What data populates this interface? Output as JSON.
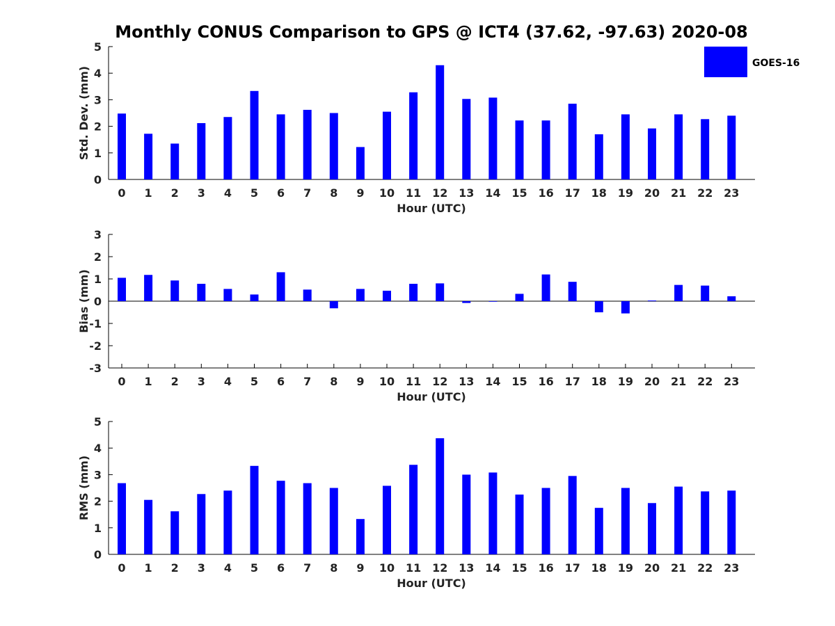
{
  "title": "Monthly CONUS Comparison to GPS @ ICT4 (37.62, -97.63) 2020-08",
  "bar_color": "#0000ff",
  "legend": {
    "label": "GOES-16",
    "placement": "top-right"
  },
  "chart_data": [
    {
      "type": "bar",
      "xlabel": "Hour (UTC)",
      "ylabel": "Std. Dev. (mm)",
      "ylim": [
        0,
        5
      ],
      "yticks": [
        0,
        1,
        2,
        3,
        4,
        5
      ],
      "categories": [
        "0",
        "1",
        "2",
        "3",
        "4",
        "5",
        "6",
        "7",
        "8",
        "9",
        "10",
        "11",
        "12",
        "13",
        "14",
        "15",
        "16",
        "17",
        "18",
        "19",
        "20",
        "21",
        "22",
        "23"
      ],
      "series": [
        {
          "name": "GOES-16",
          "values": [
            2.48,
            1.72,
            1.35,
            2.12,
            2.35,
            3.33,
            2.45,
            2.62,
            2.5,
            1.22,
            2.55,
            3.28,
            4.3,
            3.03,
            3.08,
            2.22,
            2.22,
            2.85,
            1.7,
            2.45,
            1.92,
            2.45,
            2.27,
            2.4
          ]
        }
      ]
    },
    {
      "type": "bar",
      "xlabel": "Hour (UTC)",
      "ylabel": "Bias (mm)",
      "ylim": [
        -3,
        3
      ],
      "yticks": [
        -3,
        -2,
        -1,
        0,
        1,
        2,
        3
      ],
      "categories": [
        "0",
        "1",
        "2",
        "3",
        "4",
        "5",
        "6",
        "7",
        "8",
        "9",
        "10",
        "11",
        "12",
        "13",
        "14",
        "15",
        "16",
        "17",
        "18",
        "19",
        "20",
        "21",
        "22",
        "23"
      ],
      "series": [
        {
          "name": "GOES-16",
          "values": [
            1.05,
            1.18,
            0.93,
            0.78,
            0.55,
            0.3,
            1.3,
            0.52,
            -0.32,
            0.55,
            0.47,
            0.78,
            0.8,
            -0.08,
            -0.02,
            0.33,
            1.2,
            0.87,
            -0.5,
            -0.55,
            0.03,
            0.73,
            0.7,
            0.22
          ]
        }
      ]
    },
    {
      "type": "bar",
      "xlabel": "Hour (UTC)",
      "ylabel": "RMS (mm)",
      "ylim": [
        0,
        5
      ],
      "yticks": [
        0,
        1,
        2,
        3,
        4,
        5
      ],
      "categories": [
        "0",
        "1",
        "2",
        "3",
        "4",
        "5",
        "6",
        "7",
        "8",
        "9",
        "10",
        "11",
        "12",
        "13",
        "14",
        "15",
        "16",
        "17",
        "18",
        "19",
        "20",
        "21",
        "22",
        "23"
      ],
      "series": [
        {
          "name": "GOES-16",
          "values": [
            2.68,
            2.05,
            1.62,
            2.27,
            2.4,
            3.33,
            2.77,
            2.68,
            2.5,
            1.33,
            2.58,
            3.37,
            4.37,
            3.0,
            3.08,
            2.25,
            2.5,
            2.95,
            1.75,
            2.5,
            1.93,
            2.55,
            2.37,
            2.4
          ]
        }
      ]
    }
  ]
}
